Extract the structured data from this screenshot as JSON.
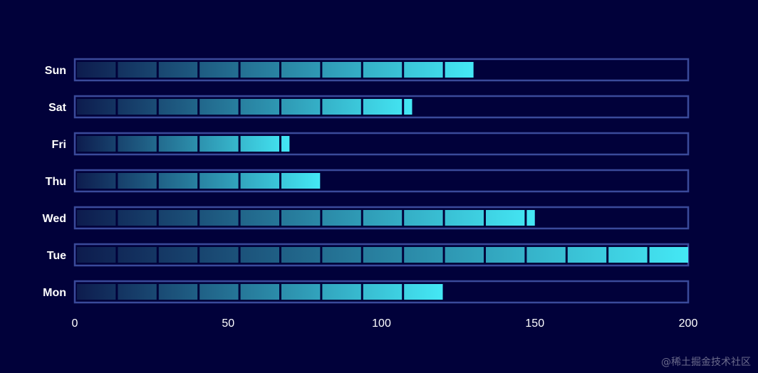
{
  "chart_data": {
    "type": "bar",
    "orientation": "horizontal",
    "categories": [
      "Mon",
      "Tue",
      "Wed",
      "Thu",
      "Fri",
      "Sat",
      "Sun"
    ],
    "values": [
      120,
      200,
      150,
      80,
      70,
      110,
      130
    ],
    "xlim": [
      0,
      200
    ],
    "xticks": [
      "0",
      "50",
      "100",
      "150",
      "200"
    ],
    "grid": false,
    "legend": "none",
    "colors": {
      "background": "#01013a",
      "frame": "#3a4a9a",
      "bar_start": "#0d1b4d",
      "bar_end": "#44e8f5"
    }
  },
  "watermark": "@稀土掘金技术社区"
}
